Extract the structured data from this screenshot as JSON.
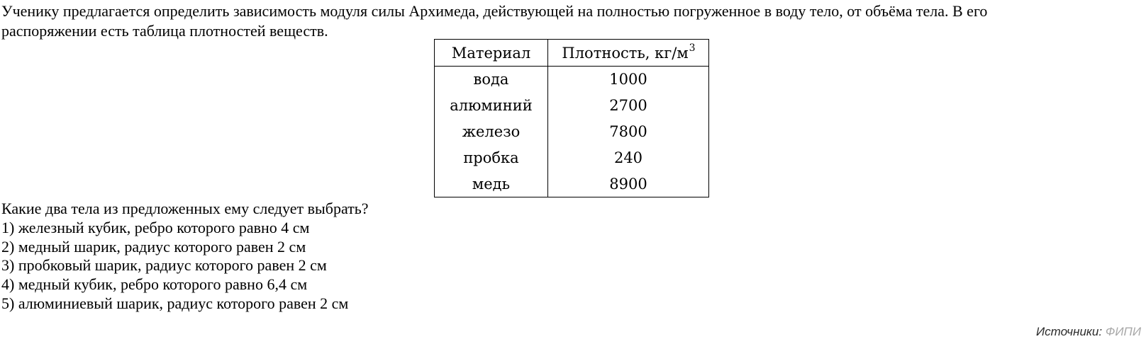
{
  "intro": {
    "lines": [
      "Ученику предлагается определить зависимость модуля силы Архимеда, действующей на полностью погруженное в воду тело, от объёма тела. В его",
      "распоряжении есть таблица плотностей веществ."
    ]
  },
  "density_table": {
    "headers": {
      "material": "Материал",
      "density_base": "Плотность, кг/м",
      "density_sup": "3"
    },
    "rows": [
      {
        "material": "вода",
        "density": "1000"
      },
      {
        "material": "алюминий",
        "density": "2700"
      },
      {
        "material": "железо",
        "density": "7800"
      },
      {
        "material": "пробка",
        "density": "240"
      },
      {
        "material": "медь",
        "density": "8900"
      }
    ]
  },
  "question": {
    "prompt": "Какие два тела из предложенных ему следует выбрать?",
    "options": [
      "1) железный кубик, ребро которого равно 4 см",
      "2) медный шарик, радиус которого равен 2 см",
      "3) пробковый шарик, радиус которого равен 2 см",
      "4) медный кубик, ребро которого равно 6,4 см",
      "5) алюминиевый шарик, радиус которого равен 2 см"
    ]
  },
  "source": {
    "label": "Источники:",
    "value": "ФИПИ",
    "value_color": "#a8a8a8"
  }
}
